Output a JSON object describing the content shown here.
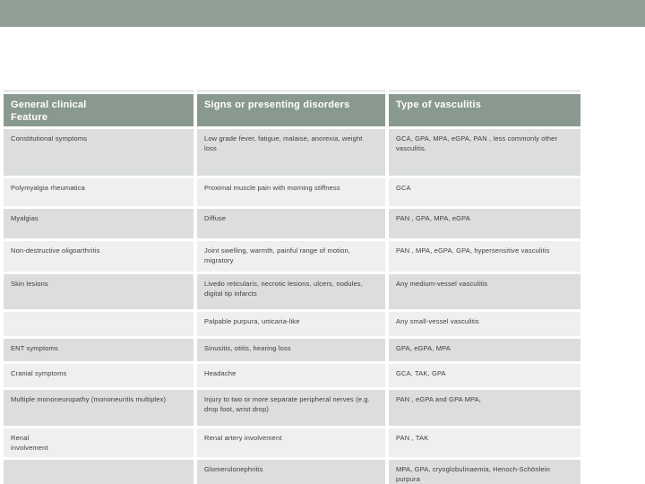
{
  "colors": {
    "top_bar": "#90A096",
    "header_bg": "#8A9990",
    "header_text": "#FFFFFF",
    "row_dark": "#DBDEDB",
    "row_light": "#EEF0EE",
    "body_text": "#3C3C3C"
  },
  "table": {
    "headers": [
      "General clinical\nFeature",
      "Signs or presenting disorders",
      "Type of vasculitis"
    ],
    "rows": [
      {
        "cells": [
          "Constitutional symptoms",
          "Low grade fever, fatigue, malaise, anorexia, weight loss",
          "GCA, GPA, MPA, eGPA, PAN , less commonly other vasculitis."
        ]
      },
      {
        "cells": [
          "Polymyalgia rheumatica",
          "Proximal muscle pain with morning stiffness",
          "GCA"
        ]
      },
      {
        "cells": [
          "Myalgias",
          "Diffuse",
          "PAN , GPA, MPA, eGPA"
        ]
      },
      {
        "cells": [
          "Non-destructive oligoarthritis",
          "Joint swelling, warmth, painful range of motion, migratory",
          "PAN , MPA, eGPA, GPA, hypersensitive vasculitis"
        ]
      },
      {
        "cells": [
          "Skin lesions",
          "Livedo reticularis, necrotic lesions, ulcers, nodules, digital tip infarcts",
          "Any medium-vessel vasculitis"
        ]
      },
      {
        "cells": [
          "",
          "Palpable purpura, urticaria-like",
          "Any small-vessel vasculitis"
        ]
      },
      {
        "cells": [
          "ENT symptoms",
          "Sinusitis, otitis, hearing loss",
          "GPA, eGPA, MPA"
        ]
      },
      {
        "cells": [
          "Cranial symptoms",
          "Headache",
          "GCA, TAK, GPA"
        ]
      },
      {
        "cells": [
          "Multiple mononeuropathy (mononeuritis multiplex)",
          "Injury to two or more separate peripheral nerves (e.g. drop foot, wrist drop)",
          "PAN , eGPA and GPA MPA,"
        ]
      },
      {
        "cells": [
          "Renal\ninvolvement",
          "Renal artery involvement",
          "PAN , TAK"
        ]
      },
      {
        "cells": [
          "",
          "Glomerulonephritis",
          "MPA, GPA, cryoglobulinaemia, Henoch-Schönlein purpura"
        ]
      }
    ]
  }
}
